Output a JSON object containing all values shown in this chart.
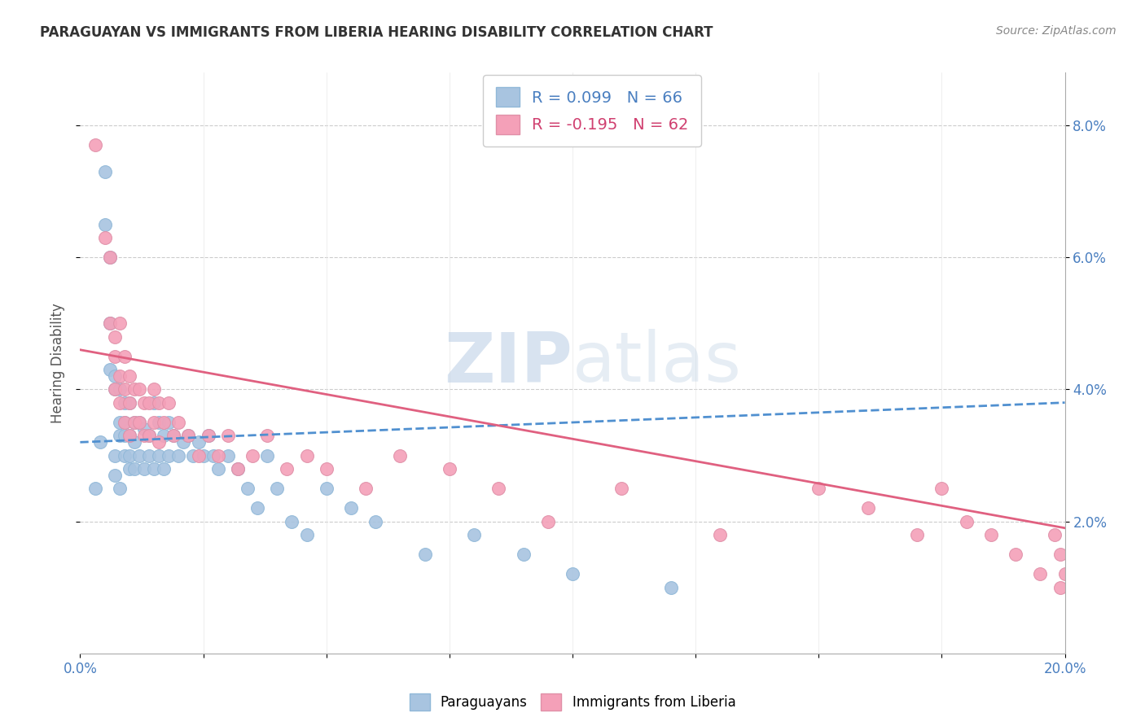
{
  "title": "PARAGUAYAN VS IMMIGRANTS FROM LIBERIA HEARING DISABILITY CORRELATION CHART",
  "source": "Source: ZipAtlas.com",
  "ylabel": "Hearing Disability",
  "xlim": [
    0.0,
    0.2
  ],
  "ylim": [
    0.0,
    0.088
  ],
  "right_yticks": [
    0.02,
    0.04,
    0.06,
    0.08
  ],
  "right_yticklabels": [
    "2.0%",
    "4.0%",
    "6.0%",
    "8.0%"
  ],
  "paraguayan_color": "#a8c4e0",
  "liberia_color": "#f4a0b8",
  "trend_paraguayan_color": "#5090d0",
  "trend_liberia_color": "#e06080",
  "R_paraguayan": 0.099,
  "N_paraguayan": 66,
  "R_liberia": -0.195,
  "N_liberia": 62,
  "background_color": "#ffffff",
  "watermark": "ZIPatlas",
  "paraguayan_x": [
    0.003,
    0.004,
    0.005,
    0.005,
    0.006,
    0.006,
    0.006,
    0.007,
    0.007,
    0.007,
    0.007,
    0.008,
    0.008,
    0.008,
    0.008,
    0.009,
    0.009,
    0.009,
    0.009,
    0.01,
    0.01,
    0.01,
    0.01,
    0.011,
    0.011,
    0.011,
    0.012,
    0.012,
    0.013,
    0.013,
    0.014,
    0.014,
    0.015,
    0.015,
    0.016,
    0.016,
    0.017,
    0.017,
    0.018,
    0.018,
    0.019,
    0.02,
    0.021,
    0.022,
    0.023,
    0.024,
    0.025,
    0.026,
    0.027,
    0.028,
    0.03,
    0.032,
    0.034,
    0.036,
    0.038,
    0.04,
    0.043,
    0.046,
    0.05,
    0.055,
    0.06,
    0.07,
    0.08,
    0.09,
    0.1,
    0.12
  ],
  "paraguayan_y": [
    0.025,
    0.032,
    0.065,
    0.073,
    0.043,
    0.05,
    0.06,
    0.04,
    0.042,
    0.03,
    0.027,
    0.033,
    0.035,
    0.04,
    0.025,
    0.038,
    0.035,
    0.033,
    0.03,
    0.038,
    0.033,
    0.03,
    0.028,
    0.035,
    0.032,
    0.028,
    0.035,
    0.03,
    0.034,
    0.028,
    0.033,
    0.03,
    0.038,
    0.028,
    0.035,
    0.03,
    0.033,
    0.028,
    0.035,
    0.03,
    0.033,
    0.03,
    0.032,
    0.033,
    0.03,
    0.032,
    0.03,
    0.033,
    0.03,
    0.028,
    0.03,
    0.028,
    0.025,
    0.022,
    0.03,
    0.025,
    0.02,
    0.018,
    0.025,
    0.022,
    0.02,
    0.015,
    0.018,
    0.015,
    0.012,
    0.01
  ],
  "liberia_x": [
    0.003,
    0.005,
    0.006,
    0.006,
    0.007,
    0.007,
    0.007,
    0.008,
    0.008,
    0.008,
    0.009,
    0.009,
    0.009,
    0.01,
    0.01,
    0.01,
    0.011,
    0.011,
    0.012,
    0.012,
    0.013,
    0.013,
    0.014,
    0.014,
    0.015,
    0.015,
    0.016,
    0.016,
    0.017,
    0.018,
    0.019,
    0.02,
    0.022,
    0.024,
    0.026,
    0.028,
    0.03,
    0.032,
    0.035,
    0.038,
    0.042,
    0.046,
    0.05,
    0.058,
    0.065,
    0.075,
    0.085,
    0.095,
    0.11,
    0.13,
    0.15,
    0.16,
    0.17,
    0.175,
    0.18,
    0.185,
    0.19,
    0.195,
    0.198,
    0.199,
    0.199,
    0.2
  ],
  "liberia_y": [
    0.077,
    0.063,
    0.06,
    0.05,
    0.048,
    0.045,
    0.04,
    0.05,
    0.042,
    0.038,
    0.045,
    0.04,
    0.035,
    0.042,
    0.038,
    0.033,
    0.04,
    0.035,
    0.04,
    0.035,
    0.038,
    0.033,
    0.038,
    0.033,
    0.04,
    0.035,
    0.038,
    0.032,
    0.035,
    0.038,
    0.033,
    0.035,
    0.033,
    0.03,
    0.033,
    0.03,
    0.033,
    0.028,
    0.03,
    0.033,
    0.028,
    0.03,
    0.028,
    0.025,
    0.03,
    0.028,
    0.025,
    0.02,
    0.025,
    0.018,
    0.025,
    0.022,
    0.018,
    0.025,
    0.02,
    0.018,
    0.015,
    0.012,
    0.018,
    0.015,
    0.01,
    0.012
  ],
  "trend_p_x0": 0.0,
  "trend_p_x1": 0.2,
  "trend_p_y0": 0.032,
  "trend_p_y1": 0.038,
  "trend_l_x0": 0.0,
  "trend_l_x1": 0.2,
  "trend_l_y0": 0.046,
  "trend_l_y1": 0.019
}
